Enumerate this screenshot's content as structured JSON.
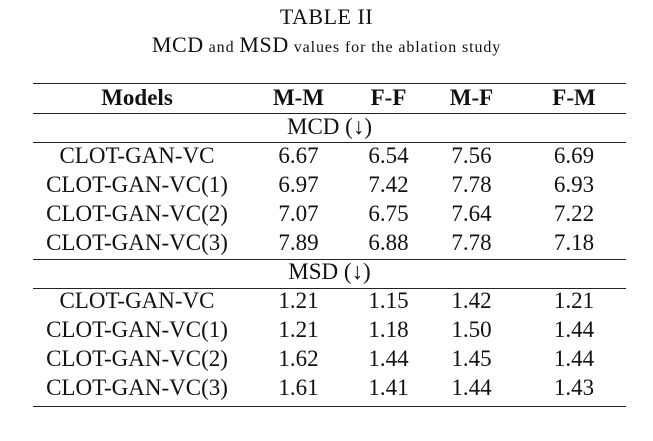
{
  "caption": {
    "label": "TABLE II",
    "text_parts": [
      {
        "text": "MCD",
        "small_caps": false
      },
      {
        "text": " and ",
        "small_caps": true
      },
      {
        "text": "MSD",
        "small_caps": false
      },
      {
        "text": " values for the ablation study",
        "small_caps": true
      }
    ]
  },
  "table": {
    "columns": [
      "Models",
      "M-M",
      "F-F",
      "M-F",
      "F-M"
    ],
    "sections": [
      {
        "title": "MCD",
        "arrow": "(↓)",
        "rows": [
          {
            "model": "CLOT-GAN-VC",
            "values": [
              "6.67",
              "6.54",
              "7.56",
              "6.69"
            ],
            "bold": true
          },
          {
            "model": "CLOT-GAN-VC(1)",
            "values": [
              "6.97",
              "7.42",
              "7.78",
              "6.93"
            ],
            "bold": false
          },
          {
            "model": "CLOT-GAN-VC(2)",
            "values": [
              "7.07",
              "6.75",
              "7.64",
              "7.22"
            ],
            "bold": false
          },
          {
            "model": "CLOT-GAN-VC(3)",
            "values": [
              "7.89",
              "6.88",
              "7.78",
              "7.18"
            ],
            "bold": false
          }
        ]
      },
      {
        "title": "MSD",
        "arrow": "(↓)",
        "rows": [
          {
            "model": "CLOT-GAN-VC",
            "values": [
              "1.21",
              "1.15",
              "1.42",
              "1.21"
            ],
            "bold": true
          },
          {
            "model": "CLOT-GAN-VC(1)",
            "values": [
              "1.21",
              "1.18",
              "1.50",
              "1.44"
            ],
            "bold": false
          },
          {
            "model": "CLOT-GAN-VC(2)",
            "values": [
              "1.62",
              "1.44",
              "1.45",
              "1.44"
            ],
            "bold": false
          },
          {
            "model": "CLOT-GAN-VC(3)",
            "values": [
              "1.61",
              "1.41",
              "1.44",
              "1.43"
            ],
            "bold": false
          }
        ]
      }
    ]
  }
}
